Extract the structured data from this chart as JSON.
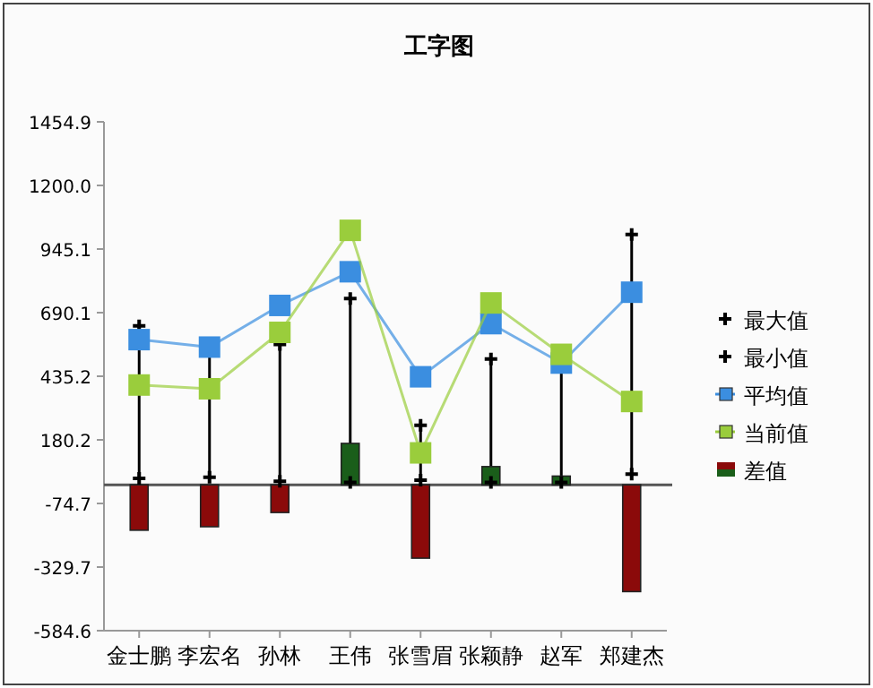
{
  "chart_data": {
    "type": "line",
    "title": "工字图",
    "categories": [
      "金士鹏",
      "李宏名",
      "孙林",
      "王伟",
      "张雪眉",
      "张颖静",
      "赵军",
      "郑建杰"
    ],
    "ylim": [
      -584.6,
      1454.9
    ],
    "yticks": [
      {
        "value": -584.6,
        "label": "-584.6"
      },
      {
        "value": -329.7,
        "label": "-329.7"
      },
      {
        "value": -74.7,
        "label": "-74.7"
      },
      {
        "value": 180.2,
        "label": "180.2"
      },
      {
        "value": 435.2,
        "label": "435.2"
      },
      {
        "value": 690.1,
        "label": "690.1"
      },
      {
        "value": 945.1,
        "label": "945.1"
      },
      {
        "value": 1200,
        "label": "1200.0"
      },
      {
        "value": 1454.9,
        "label": "1454.9"
      }
    ],
    "legend": "right",
    "ref_lines": [
      {
        "axis": "y",
        "value": 0,
        "color": "#555555"
      }
    ],
    "series": [
      {
        "name": "最大值",
        "type": "scatter",
        "marker": "cross",
        "color": "#000000",
        "values": [
          637,
          null,
          563,
          747,
          239,
          504,
          null,
          1003
        ]
      },
      {
        "name": "最小值",
        "type": "scatter",
        "marker": "cross",
        "color": "#000000",
        "values": [
          26,
          30,
          14,
          10,
          19,
          10,
          10,
          43
        ]
      },
      {
        "name": "平均值",
        "marker": "square",
        "color": "#3b8ee0",
        "values": [
          582,
          552,
          719,
          854,
          433,
          646,
          488,
          772
        ]
      },
      {
        "name": "当前值",
        "marker": "square",
        "color": "#9acd3c",
        "values": [
          400,
          385,
          611,
          1020,
          128,
          729,
          523,
          334
        ]
      },
      {
        "name": "差值",
        "type": "bar",
        "colors": [
          "#8b0a0a",
          "#8b0a0a",
          "#8b0a0a",
          "#1a5e1a",
          "#8b0a0a",
          "#1a5e1a",
          "#1a5e1a",
          "#8b0a0a"
        ],
        "values": [
          -182,
          -168,
          -111,
          166,
          -294,
          73,
          35,
          -428
        ]
      }
    ]
  }
}
